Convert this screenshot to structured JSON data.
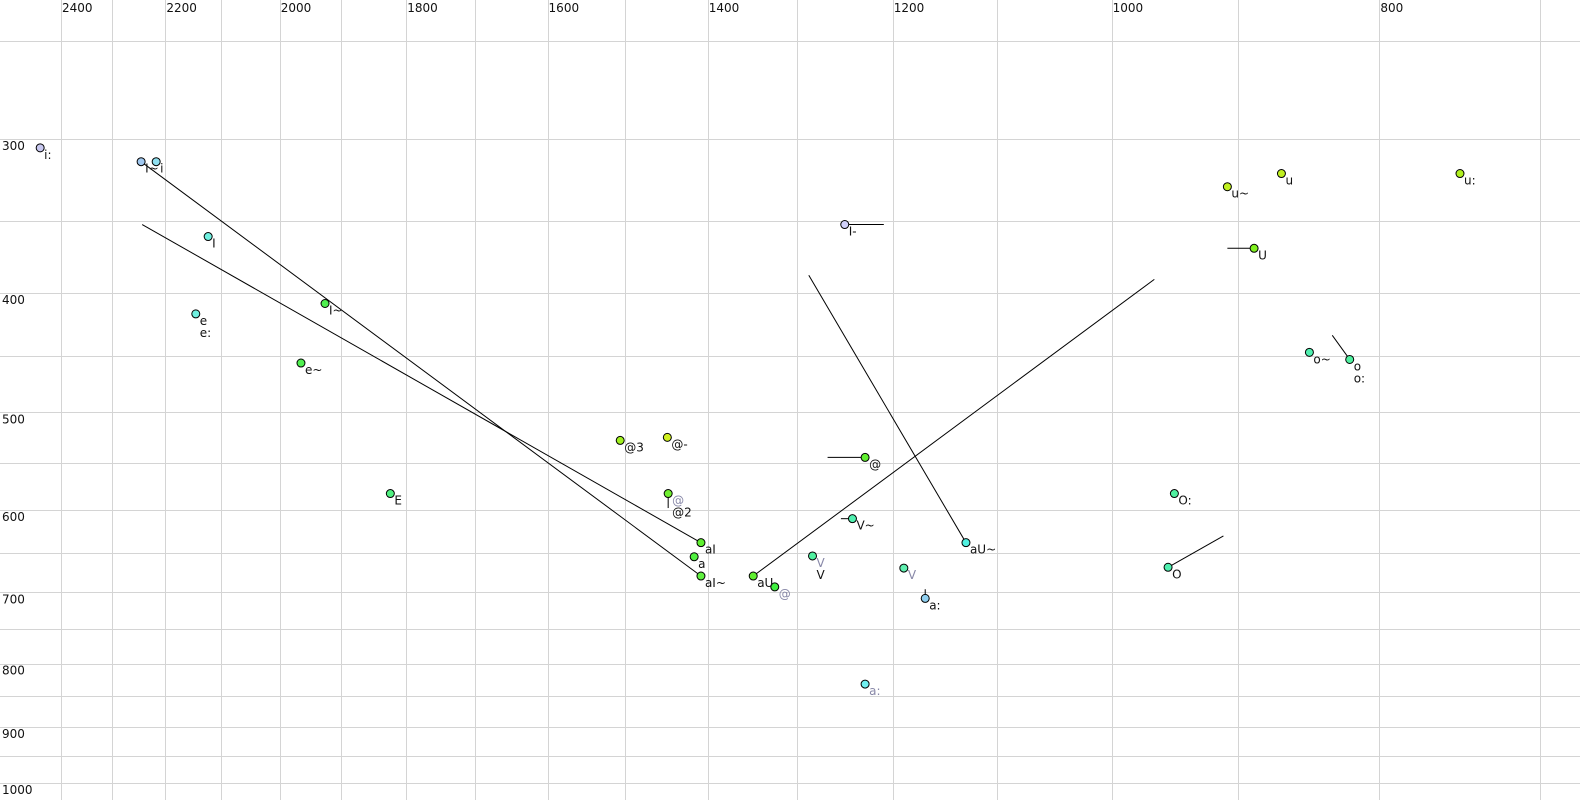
{
  "chart_data": {
    "type": "scatter",
    "title": "",
    "xlabel": "",
    "ylabel": "",
    "x_scale": "log",
    "y_scale": "log",
    "x_reversed": true,
    "x_axis_position": "top",
    "xlim": [
      2442,
      700
    ],
    "ylim": [
      250,
      1000
    ],
    "grid": true,
    "x_ticks": [
      2400,
      2200,
      2000,
      1800,
      1600,
      1400,
      1200,
      1000,
      800
    ],
    "y_ticks": [
      300,
      400,
      500,
      600,
      700,
      800,
      900,
      1000
    ],
    "x_grid": [
      2400,
      2300,
      2200,
      2100,
      2000,
      1900,
      1800,
      1700,
      1600,
      1500,
      1400,
      1300,
      1200,
      1100,
      1000,
      900,
      800,
      700
    ],
    "y_grid": [
      250,
      300,
      350,
      400,
      450,
      500,
      550,
      600,
      650,
      700,
      750,
      800,
      850,
      900,
      950,
      1000
    ],
    "points": [
      {
        "x": 2442,
        "y": 305,
        "color": "#c8c8f0",
        "labels": [
          {
            "text": "i:"
          }
        ]
      },
      {
        "x": 2245,
        "y": 313,
        "color": "#a0c8f0",
        "labels": [
          {
            "text": "I~"
          }
        ],
        "from": [
          1408,
          679
        ]
      },
      {
        "x": 2217,
        "y": 313,
        "color": "#90e0f0",
        "labels": [
          {
            "text": "i"
          }
        ]
      },
      {
        "x": 2123,
        "y": 360,
        "color": "#70f0e0",
        "labels": [
          {
            "text": "I"
          }
        ]
      },
      {
        "x": 2145,
        "y": 416,
        "color": "#70f0e0",
        "labels": [
          {
            "text": "e"
          },
          {
            "text": "e:"
          }
        ]
      },
      {
        "x": 1926,
        "y": 408,
        "color": "#50f050",
        "labels": [
          {
            "text": "I~"
          }
        ]
      },
      {
        "x": 1965,
        "y": 456,
        "color": "#50f050",
        "labels": [
          {
            "text": "e~"
          }
        ]
      },
      {
        "x": 1824,
        "y": 582,
        "color": "#50f080",
        "labels": [
          {
            "text": "E"
          }
        ]
      },
      {
        "x": 1506,
        "y": 527,
        "color": "#a0f020",
        "labels": [
          {
            "text": "@3"
          }
        ]
      },
      {
        "x": 1448,
        "y": 524,
        "color": "#d0f020",
        "labels": [
          {
            "text": "@-"
          }
        ]
      },
      {
        "x": 1447,
        "y": 582,
        "color": "#70f030",
        "labels": [
          {
            "text": "@",
            "faded": true
          },
          {
            "text": "@2"
          }
        ],
        "from": [
          1447,
          598
        ]
      },
      {
        "x": 1408,
        "y": 638,
        "color": "#60f030",
        "labels": [
          {
            "text": "aI"
          }
        ],
        "from": [
          2243,
          352
        ]
      },
      {
        "x": 1416,
        "y": 655,
        "color": "#50f040",
        "labels": [
          {
            "text": "a"
          }
        ]
      },
      {
        "x": 1408,
        "y": 679,
        "color": "#60f040",
        "labels": [
          {
            "text": "aI~"
          }
        ]
      },
      {
        "x": 1348,
        "y": 679,
        "color": "#60f030",
        "labels": [
          {
            "text": "aU"
          }
        ],
        "from": [
          965,
          390
        ]
      },
      {
        "x": 1324,
        "y": 693,
        "color": "#40f040",
        "labels": [
          {
            "text": "@",
            "faded": true
          }
        ]
      },
      {
        "x": 1283,
        "y": 654,
        "color": "#50f0a0",
        "labels": [
          {
            "text": "V",
            "faded": true
          },
          {
            "text": "V"
          }
        ]
      },
      {
        "x": 1241,
        "y": 610,
        "color": "#50f0b0",
        "labels": [
          {
            "text": "V~"
          }
        ],
        "from": [
          1253,
          610
        ]
      },
      {
        "x": 1228,
        "y": 544,
        "color": "#60f030",
        "labels": [
          {
            "text": "@"
          }
        ],
        "from": [
          1267,
          544
        ]
      },
      {
        "x": 1189,
        "y": 669,
        "color": "#60f0b0",
        "labels": [
          {
            "text": "V",
            "faded": true
          }
        ]
      },
      {
        "x": 1168,
        "y": 708,
        "color": "#90d0f0",
        "labels": [
          {
            "text": "a:"
          }
        ],
        "from": [
          1168,
          696
        ]
      },
      {
        "x": 1228,
        "y": 831,
        "color": "#70f0f0",
        "labels": [
          {
            "text": "a:",
            "faded": true
          }
        ]
      },
      {
        "x": 1129,
        "y": 638,
        "color": "#50f0e0",
        "labels": [
          {
            "text": "aU~"
          }
        ],
        "from": [
          1287,
          387
        ]
      },
      {
        "x": 1249,
        "y": 352,
        "color": "#d0d0f8",
        "labels": [
          {
            "text": "I-"
          }
        ],
        "from": [
          1209,
          352
        ]
      },
      {
        "x": 949,
        "y": 582,
        "color": "#50f0a0",
        "labels": [
          {
            "text": "O:"
          }
        ]
      },
      {
        "x": 954,
        "y": 668,
        "color": "#50f0b0",
        "labels": [
          {
            "text": "O"
          }
        ],
        "from": [
          911,
          630
        ]
      },
      {
        "x": 908,
        "y": 328,
        "color": "#c0f020",
        "labels": [
          {
            "text": "u~"
          }
        ]
      },
      {
        "x": 868,
        "y": 320,
        "color": "#c0f020",
        "labels": [
          {
            "text": "u"
          }
        ]
      },
      {
        "x": 748,
        "y": 320,
        "color": "#b0f020",
        "labels": [
          {
            "text": "u:"
          }
        ]
      },
      {
        "x": 888,
        "y": 368,
        "color": "#80f020",
        "labels": [
          {
            "text": "U"
          }
        ],
        "from": [
          908,
          368
        ]
      },
      {
        "x": 848,
        "y": 447,
        "color": "#50f0b0",
        "labels": [
          {
            "text": "o~"
          }
        ]
      },
      {
        "x": 820,
        "y": 453,
        "color": "#50f0a0",
        "labels": [
          {
            "text": "o"
          },
          {
            "text": "o:"
          }
        ],
        "from": [
          832,
          433
        ]
      }
    ]
  }
}
